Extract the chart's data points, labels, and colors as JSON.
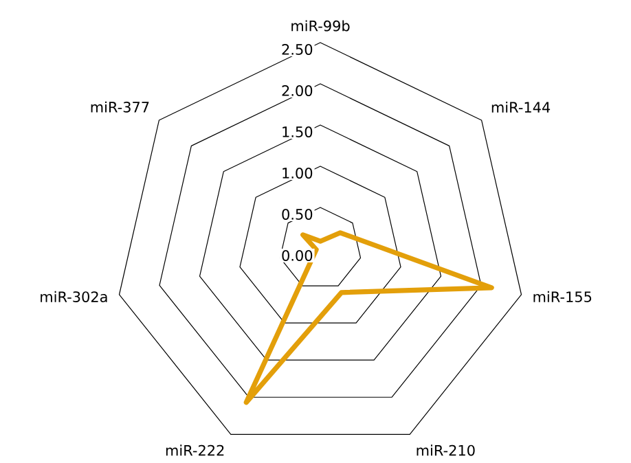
{
  "chart_data": {
    "type": "radar",
    "categories": [
      "miR-99b",
      "miR-144",
      "miR-155",
      "miR-210",
      "miR-222",
      "miR-302a",
      "miR-377"
    ],
    "series": [
      {
        "color": "#e39f0a",
        "values": [
          0.09,
          0.31,
          2.13,
          0.59,
          2.07,
          0.05,
          0.27
        ]
      }
    ],
    "ylim": [
      0,
      2.5
    ],
    "yticks": [
      {
        "value": 0,
        "label": "0.00"
      },
      {
        "value": 0.5,
        "label": "0.50"
      },
      {
        "value": 1,
        "label": "1.00"
      },
      {
        "value": 1.5,
        "label": "1.50"
      },
      {
        "value": 2,
        "label": "2.00"
      },
      {
        "value": 2.5,
        "label": "2.50"
      }
    ],
    "grid": true
  }
}
